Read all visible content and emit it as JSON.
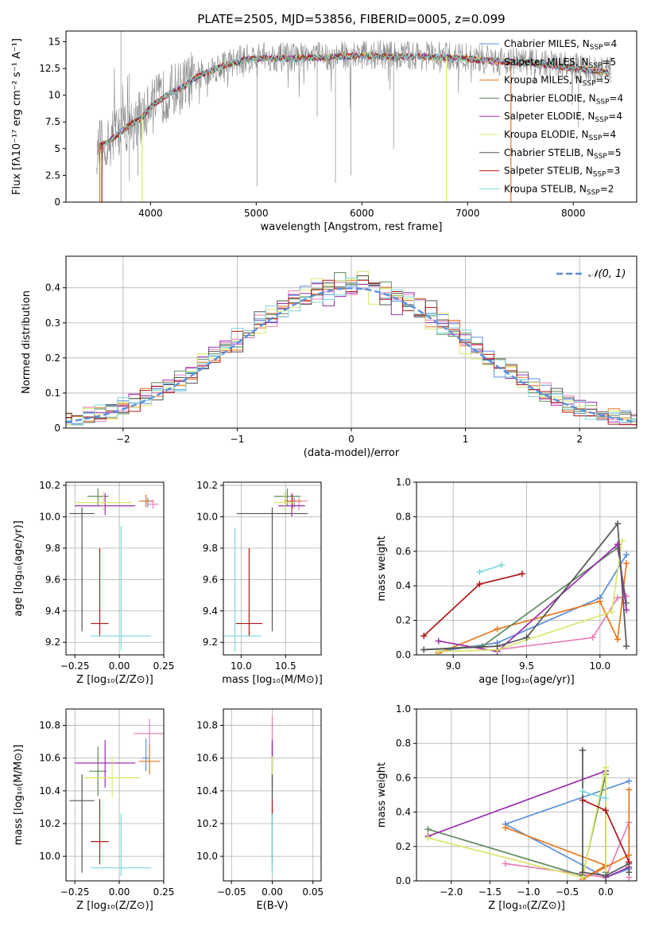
{
  "figure_title": "PLATE=2505, MJD=53856, FIBERID=0005, z=0.099",
  "colors": {
    "Chabrier MILES": "#5b8fdb",
    "Salpeter MILES": "#e87fb8",
    "Kroupa MILES": "#e8771e",
    "Chabrier ELODIE": "#5e8a5e",
    "Salpeter ELODIE": "#9b30b0",
    "Kroupa ELODIE": "#d9e86a",
    "Chabrier STELIB": "#555555",
    "Salpeter STELIB": "#b01818",
    "Kroupa STELIB": "#7fd8dc",
    "data": "#888888",
    "normal": "#5b8fdb"
  },
  "chart_data": [
    {
      "id": "spectrum",
      "type": "line",
      "title": "PLATE=2505, MJD=53856, FIBERID=0005, z=0.099",
      "xlabel": "wavelength [Angstrom, rest frame]",
      "ylabel": "Flux [fλ10⁻¹⁷ erg cm⁻² s⁻¹ A⁻¹]",
      "xlim": [
        3200,
        8600
      ],
      "ylim": [
        0,
        16
      ],
      "xticks": [
        4000,
        5000,
        6000,
        7000,
        8000
      ],
      "yticks": [
        0.0,
        2.5,
        5.0,
        7.5,
        10.0,
        12.5,
        15.0
      ],
      "grid": false,
      "legend_position": "upper-right",
      "continuum": {
        "x": [
          3500,
          3600,
          3700,
          3800,
          3900,
          4000,
          4100,
          4200,
          4300,
          4400,
          4500,
          4700,
          4900,
          5100,
          5300,
          5500,
          5800,
          6000,
          6300,
          6600,
          6800,
          7000,
          7200,
          7400,
          7600,
          7800,
          8000,
          8200,
          8350
        ],
        "y": [
          5.3,
          5.7,
          6.5,
          7.3,
          7.8,
          9.0,
          9.7,
          10.4,
          10.8,
          11.6,
          12.1,
          12.9,
          13.4,
          13.6,
          13.5,
          13.6,
          13.7,
          13.8,
          13.7,
          13.7,
          13.6,
          13.5,
          13.3,
          13.2,
          13.1,
          12.9,
          12.6,
          12.4,
          12.2
        ]
      },
      "series": [
        {
          "name": "Chabrier MILES",
          "N_SSP": "4"
        },
        {
          "name": "Salpeter MILES",
          "N_SSP": "5"
        },
        {
          "name": "Kroupa MILES",
          "N_SSP": "5"
        },
        {
          "name": "Chabrier ELODIE",
          "N_SSP": "4"
        },
        {
          "name": "Salpeter ELODIE",
          "N_SSP": "4"
        },
        {
          "name": "Kroupa ELODIE",
          "N_SSP": "4"
        },
        {
          "name": "Chabrier STELIB",
          "N_SSP": "5"
        },
        {
          "name": "Salpeter STELIB",
          "N_SSP": "3"
        },
        {
          "name": "Kroupa STELIB",
          "N_SSP": "2"
        }
      ]
    },
    {
      "id": "residuals",
      "type": "histogram",
      "xlabel": "(data-model)/error",
      "ylabel": "Normed distribution",
      "xlim": [
        -2.5,
        2.5
      ],
      "ylim": [
        0,
        0.49
      ],
      "xticks": [
        -2,
        -1,
        0,
        1,
        2
      ],
      "yticks": [
        0.0,
        0.1,
        0.2,
        0.3,
        0.4
      ],
      "grid": true,
      "legend_position": "upper-right",
      "legend_label": "𝒩(0, 1)",
      "bin_edges_step": 0.1
    },
    {
      "id": "age_vs_Z",
      "type": "errorbar",
      "xlabel": "Z [log₁₀(Z/Z⊙)]",
      "ylabel": "age  [log₁₀(age/yr)]",
      "xlim": [
        -0.3,
        0.25
      ],
      "ylim": [
        9.12,
        10.22
      ],
      "xticks": [
        -0.25,
        0.0,
        0.25
      ],
      "xticklabels": [
        "−0.25",
        "0.00",
        "0.25"
      ],
      "yticks": [
        9.2,
        9.4,
        9.6,
        9.8,
        10.0,
        10.2
      ],
      "yticklabels": [
        "9.2",
        "9.4",
        "9.6",
        "9.8",
        "10.0",
        "10.2"
      ],
      "grid": true,
      "points": [
        {
          "name": "Chabrier MILES",
          "x": 0.16,
          "xerr": 0.03,
          "y": 10.1,
          "ylo": 10.06,
          "yhi": 10.12
        },
        {
          "name": "Salpeter MILES",
          "x": 0.19,
          "xerr": 0.03,
          "y": 10.08,
          "ylo": 10.05,
          "yhi": 10.11
        },
        {
          "name": "Kroupa MILES",
          "x": 0.15,
          "xerr": 0.04,
          "y": 10.1,
          "ylo": 10.06,
          "yhi": 10.14
        },
        {
          "name": "Chabrier ELODIE",
          "x": -0.12,
          "xerr": 0.06,
          "y": 10.13,
          "ylo": 10.07,
          "yhi": 10.18
        },
        {
          "name": "Salpeter ELODIE",
          "x": -0.08,
          "xerr": 0.17,
          "y": 10.07,
          "ylo": 10.01,
          "yhi": 10.15
        },
        {
          "name": "Kroupa ELODIE",
          "x": -0.09,
          "xerr": 0.16,
          "y": 10.09,
          "ylo": 10.04,
          "yhi": 10.16
        },
        {
          "name": "Chabrier STELIB",
          "x": -0.21,
          "xerr": 0.07,
          "y": 10.02,
          "ylo": 9.27,
          "yhi": 10.06
        },
        {
          "name": "Salpeter STELIB",
          "x": -0.11,
          "xerr": 0.05,
          "y": 9.32,
          "ylo": 9.24,
          "yhi": 9.8
        },
        {
          "name": "Kroupa STELIB",
          "x": 0.01,
          "xerr": 0.17,
          "y": 9.24,
          "ylo": 9.15,
          "yhi": 9.94
        }
      ]
    },
    {
      "id": "age_vs_mass",
      "type": "errorbar",
      "xlabel": "mass [log₁₀(M/M⊙)]",
      "ylabel": "",
      "xlim": [
        9.8,
        10.9
      ],
      "ylim": [
        9.12,
        10.22
      ],
      "xticks": [
        10.0,
        10.5
      ],
      "xticklabels": [
        "10.0",
        "10.5"
      ],
      "yticks": [
        9.2,
        9.4,
        9.6,
        9.8,
        10.0,
        10.2
      ],
      "yticklabels": [
        "9.2",
        "9.4",
        "9.6",
        "9.8",
        "10.0",
        "10.2"
      ],
      "grid": true,
      "points": [
        {
          "name": "Chabrier MILES",
          "x": 10.6,
          "xerr": 0.08,
          "y": 10.1,
          "ylo": 10.06,
          "yhi": 10.12
        },
        {
          "name": "Salpeter MILES",
          "x": 10.65,
          "xerr": 0.1,
          "y": 10.1,
          "ylo": 10.04,
          "yhi": 10.12
        },
        {
          "name": "Kroupa MILES",
          "x": 10.58,
          "xerr": 0.1,
          "y": 10.1,
          "ylo": 10.05,
          "yhi": 10.14
        },
        {
          "name": "Chabrier ELODIE",
          "x": 10.52,
          "xerr": 0.15,
          "y": 10.13,
          "ylo": 10.07,
          "yhi": 10.18
        },
        {
          "name": "Salpeter ELODIE",
          "x": 10.57,
          "xerr": 0.15,
          "y": 10.07,
          "ylo": 10.0,
          "yhi": 10.15
        },
        {
          "name": "Kroupa ELODIE",
          "x": 10.49,
          "xerr": 0.12,
          "y": 10.09,
          "ylo": 10.04,
          "yhi": 10.16
        },
        {
          "name": "Chabrier STELIB",
          "x": 10.35,
          "xerr": 0.4,
          "y": 10.02,
          "ylo": 9.27,
          "yhi": 10.06
        },
        {
          "name": "Salpeter STELIB",
          "x": 10.09,
          "xerr": 0.15,
          "y": 9.32,
          "ylo": 9.24,
          "yhi": 9.8
        },
        {
          "name": "Kroupa STELIB",
          "x": 9.93,
          "xerr": 0.3,
          "y": 9.24,
          "ylo": 9.14,
          "yhi": 9.93
        }
      ]
    },
    {
      "id": "mass_vs_Z",
      "type": "errorbar",
      "xlabel": "Z [log₁₀(Z/Z⊙)]",
      "ylabel": "mass [log₁₀(M/M⊙)]",
      "xlim": [
        -0.3,
        0.25
      ],
      "ylim": [
        9.85,
        10.9
      ],
      "xticks": [
        -0.25,
        0.0,
        0.25
      ],
      "xticklabels": [
        "−0.25",
        "0.00",
        "0.25"
      ],
      "yticks": [
        10.0,
        10.2,
        10.4,
        10.6,
        10.8
      ],
      "yticklabels": [
        "10.0",
        "10.2",
        "10.4",
        "10.6",
        "10.8"
      ],
      "grid": true,
      "points": [
        {
          "name": "Chabrier MILES",
          "x": 0.15,
          "xerr": 0.02,
          "y": 10.6,
          "ylo": 10.52,
          "yhi": 10.72
        },
        {
          "name": "Salpeter MILES",
          "x": 0.17,
          "xerr": 0.09,
          "y": 10.75,
          "ylo": 10.65,
          "yhi": 10.84
        },
        {
          "name": "Kroupa MILES",
          "x": 0.17,
          "xerr": 0.06,
          "y": 10.58,
          "ylo": 10.5,
          "yhi": 10.68
        },
        {
          "name": "Chabrier ELODIE",
          "x": -0.12,
          "xerr": 0.05,
          "y": 10.52,
          "ylo": 10.37,
          "yhi": 10.67
        },
        {
          "name": "Salpeter ELODIE",
          "x": -0.08,
          "xerr": 0.17,
          "y": 10.57,
          "ylo": 10.42,
          "yhi": 10.71
        },
        {
          "name": "Kroupa ELODIE",
          "x": -0.04,
          "xerr": 0.16,
          "y": 10.48,
          "ylo": 10.36,
          "yhi": 10.61
        },
        {
          "name": "Chabrier STELIB",
          "x": -0.21,
          "xerr": 0.07,
          "y": 10.34,
          "ylo": 9.9,
          "yhi": 10.5
        },
        {
          "name": "Salpeter STELIB",
          "x": -0.11,
          "xerr": 0.05,
          "y": 10.09,
          "ylo": 9.95,
          "yhi": 10.35
        },
        {
          "name": "Kroupa STELIB",
          "x": 0.01,
          "xerr": 0.17,
          "y": 9.93,
          "ylo": 9.88,
          "yhi": 10.26
        }
      ]
    },
    {
      "id": "mass_vs_ebv",
      "type": "errorbar",
      "xlabel": "E(B-V)",
      "ylabel": "",
      "xlim": [
        -0.06,
        0.06
      ],
      "ylim": [
        9.85,
        10.9
      ],
      "xticks": [
        -0.05,
        0.0,
        0.05
      ],
      "xticklabels": [
        "−0.05",
        "0.00",
        "0.05"
      ],
      "yticks": [
        10.0,
        10.2,
        10.4,
        10.6,
        10.8
      ],
      "yticklabels": [
        "10.0",
        "10.2",
        "10.4",
        "10.6",
        "10.8"
      ],
      "grid": true,
      "points": [
        {
          "name": "Chabrier MILES",
          "x": 0.0,
          "xerr": 0.0,
          "y": 10.6,
          "ylo": 10.52,
          "yhi": 10.72
        },
        {
          "name": "Salpeter MILES",
          "x": 0.0,
          "xerr": 0.0,
          "y": 10.75,
          "ylo": 10.65,
          "yhi": 10.86
        },
        {
          "name": "Kroupa MILES",
          "x": 0.0,
          "xerr": 0.0,
          "y": 10.58,
          "ylo": 10.5,
          "yhi": 10.68
        },
        {
          "name": "Chabrier ELODIE",
          "x": 0.0,
          "xerr": 0.0,
          "y": 10.52,
          "ylo": 10.37,
          "yhi": 10.67
        },
        {
          "name": "Salpeter ELODIE",
          "x": 0.0,
          "xerr": 0.0,
          "y": 10.57,
          "ylo": 10.42,
          "yhi": 10.71
        },
        {
          "name": "Kroupa ELODIE",
          "x": 0.0,
          "xerr": 0.0,
          "y": 10.48,
          "ylo": 10.36,
          "yhi": 10.61
        },
        {
          "name": "Chabrier STELIB",
          "x": 0.0,
          "xerr": 0.0,
          "y": 10.34,
          "ylo": 9.9,
          "yhi": 10.5
        },
        {
          "name": "Salpeter STELIB",
          "x": 0.0,
          "xerr": 0.0,
          "y": 10.09,
          "ylo": 9.95,
          "yhi": 10.35
        },
        {
          "name": "Kroupa STELIB",
          "x": 0.0,
          "xerr": 0.0,
          "y": 9.93,
          "ylo": 9.88,
          "yhi": 10.26
        }
      ]
    },
    {
      "id": "weight_vs_age",
      "type": "line",
      "xlabel": "age  [log₁₀(age/yr)]",
      "ylabel": "mass weight",
      "xlim": [
        8.75,
        10.25
      ],
      "ylim": [
        0,
        1
      ],
      "xticks": [
        9.0,
        9.5,
        10.0
      ],
      "xticklabels": [
        "9.0",
        "9.5",
        "10.0"
      ],
      "yticks": [
        0,
        0.2,
        0.4,
        0.6,
        0.8,
        1.0
      ],
      "yticklabels": [
        "0.0",
        "0.2",
        "0.4",
        "0.6",
        "0.8",
        "1.0"
      ],
      "grid": true,
      "series": [
        {
          "name": "Chabrier MILES",
          "x": [
            8.9,
            9.3,
            10.0,
            10.18
          ],
          "y": [
            0.02,
            0.07,
            0.33,
            0.58
          ]
        },
        {
          "name": "Salpeter MILES",
          "x": [
            8.9,
            9.3,
            9.95,
            10.12,
            10.18
          ],
          "y": [
            0.02,
            0.03,
            0.1,
            0.33,
            0.34
          ]
        },
        {
          "name": "Kroupa MILES",
          "x": [
            8.9,
            9.3,
            10.0,
            10.12,
            10.18
          ],
          "y": [
            0.01,
            0.15,
            0.31,
            0.09,
            0.53
          ]
        },
        {
          "name": "Chabrier ELODIE",
          "x": [
            8.8,
            9.2,
            10.12,
            10.18
          ],
          "y": [
            0.03,
            0.05,
            0.62,
            0.3
          ]
        },
        {
          "name": "Salpeter ELODIE",
          "x": [
            8.9,
            9.3,
            10.12,
            10.18
          ],
          "y": [
            0.08,
            0.02,
            0.64,
            0.26
          ]
        },
        {
          "name": "Kroupa ELODIE",
          "x": [
            8.9,
            9.3,
            10.08,
            10.15
          ],
          "y": [
            0.02,
            0.03,
            0.25,
            0.66
          ]
        },
        {
          "name": "Chabrier STELIB",
          "x": [
            8.8,
            9.3,
            9.5,
            10.12,
            10.18
          ],
          "y": [
            0.03,
            0.05,
            0.1,
            0.76,
            0.05
          ]
        },
        {
          "name": "Salpeter STELIB",
          "x": [
            8.8,
            9.18,
            9.47
          ],
          "y": [
            0.11,
            0.41,
            0.47
          ]
        },
        {
          "name": "Kroupa STELIB",
          "x": [
            9.18,
            9.33
          ],
          "y": [
            0.48,
            0.52
          ]
        }
      ]
    },
    {
      "id": "weight_vs_Z",
      "type": "line",
      "xlabel": "Z [log₁₀(Z/Z⊙)]",
      "ylabel": "mass weight",
      "xlim": [
        -2.45,
        0.4
      ],
      "ylim": [
        0,
        1
      ],
      "xticks": [
        -2.0,
        -1.5,
        -1.0,
        -0.5,
        0.0
      ],
      "xticklabels": [
        "−2.0",
        "−1.5",
        "−1.0",
        "−0.5",
        "0.0"
      ],
      "yticks": [
        0,
        0.2,
        0.4,
        0.6,
        0.8,
        1.0
      ],
      "yticklabels": [
        "0.0",
        "0.2",
        "0.4",
        "0.6",
        "0.8",
        "1.0"
      ],
      "grid": true,
      "series": [
        {
          "name": "Chabrier MILES",
          "x": [
            0.3,
            -1.3,
            0.0,
            0.3
          ],
          "y": [
            0.58,
            0.33,
            0.02,
            0.07
          ]
        },
        {
          "name": "Salpeter MILES",
          "x": [
            -1.3,
            0.0,
            0.3,
            0.3
          ],
          "y": [
            0.1,
            0.02,
            0.34,
            0.02
          ]
        },
        {
          "name": "Kroupa MILES",
          "x": [
            -1.3,
            0.0,
            -0.3,
            0.3,
            0.3
          ],
          "y": [
            0.31,
            0.09,
            0.01,
            0.15,
            0.53
          ]
        },
        {
          "name": "Chabrier ELODIE",
          "x": [
            -2.3,
            -0.3,
            0.0,
            0.0
          ],
          "y": [
            0.3,
            0.03,
            0.62,
            0.05
          ]
        },
        {
          "name": "Salpeter ELODIE",
          "x": [
            -2.3,
            0.0,
            0.0,
            0.3
          ],
          "y": [
            0.26,
            0.64,
            0.02,
            0.08
          ]
        },
        {
          "name": "Kroupa ELODIE",
          "x": [
            -2.3,
            -0.3,
            0.0,
            0.0
          ],
          "y": [
            0.25,
            0.02,
            0.66,
            0.03
          ]
        },
        {
          "name": "Chabrier STELIB",
          "x": [
            -0.3,
            -0.3,
            0.0,
            0.3,
            0.3
          ],
          "y": [
            0.76,
            0.05,
            0.03,
            0.1,
            0.05
          ]
        },
        {
          "name": "Salpeter STELIB",
          "x": [
            -0.3,
            0.0,
            0.3
          ],
          "y": [
            0.47,
            0.41,
            0.11
          ]
        },
        {
          "name": "Kroupa STELIB",
          "x": [
            -0.3,
            0.0
          ],
          "y": [
            0.52,
            0.48
          ]
        }
      ]
    }
  ]
}
